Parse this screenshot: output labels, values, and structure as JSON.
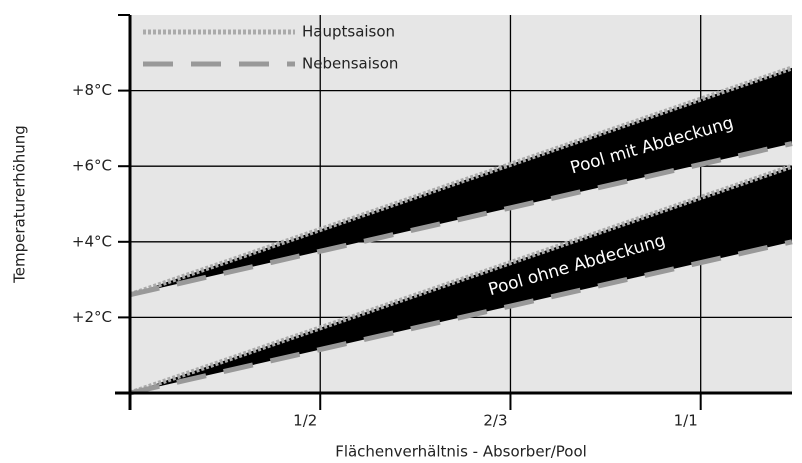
{
  "chart_data": {
    "type": "band",
    "x_label": "Flächenverhältnis - Absorber/Pool",
    "y_label": "Temperaturerhöhung",
    "x": [
      0,
      3.48
    ],
    "xlim": [
      0,
      3.48
    ],
    "xticks": [
      {
        "value": 1,
        "label": "1/2"
      },
      {
        "value": 2,
        "label": "2/3"
      },
      {
        "value": 3,
        "label": "1/1"
      }
    ],
    "ylim": [
      0,
      10
    ],
    "yticks": [
      {
        "value": 2,
        "label": "+2°C"
      },
      {
        "value": 4,
        "label": "+4°C"
      },
      {
        "value": 6,
        "label": "+6°C"
      },
      {
        "value": 8,
        "label": "+8°C"
      }
    ],
    "grid": true,
    "legend": [
      {
        "name": "Hauptsaison",
        "color": "#aaaaaa",
        "style": "dotted"
      },
      {
        "name": "Nebensaison",
        "color": "#999999",
        "style": "dashed"
      }
    ],
    "bands": [
      {
        "label": "Pool mit Abdeckung",
        "upper": [
          2.6,
          8.6
        ],
        "lower": [
          2.6,
          6.6
        ]
      },
      {
        "label": "Pool ohne Abdeckung",
        "upper": [
          0,
          6.0
        ],
        "lower": [
          0,
          4.0
        ]
      }
    ]
  }
}
